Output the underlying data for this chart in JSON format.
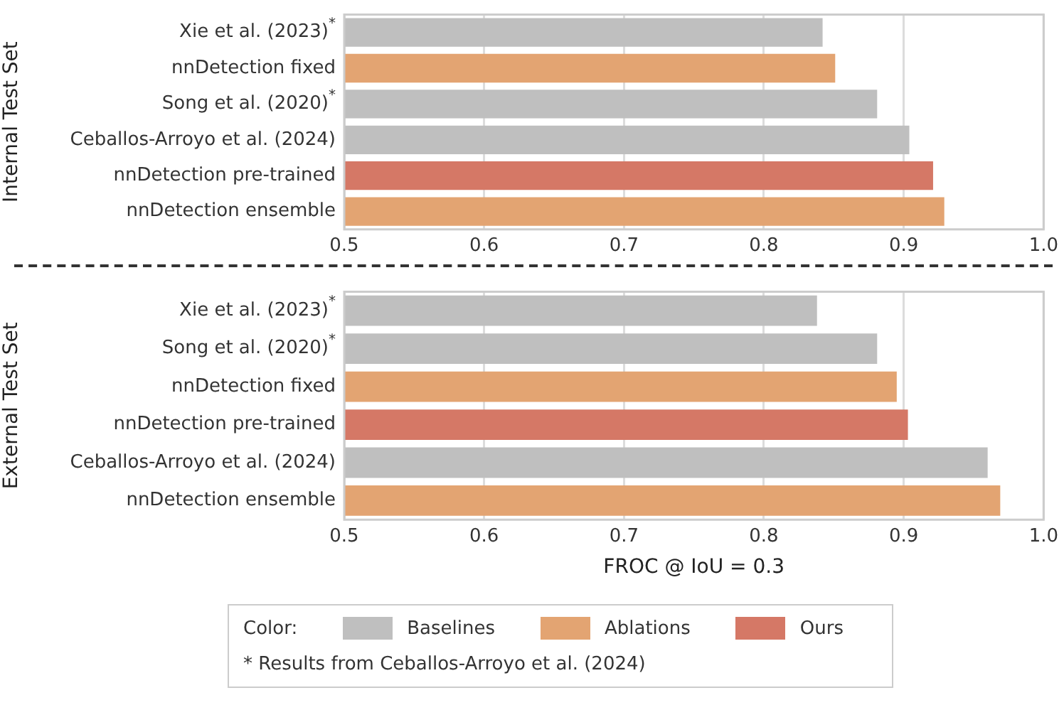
{
  "chart_data": [
    {
      "type": "bar",
      "orientation": "horizontal",
      "stacked": true,
      "ylabel": "Internal Test Set",
      "categories": [
        "Xie et al. (2023)$^{*}$",
        "nnDetection fixed",
        "Song et al. (2020)$^{*}$",
        "Ceballos-Arroyo et al. (2024)",
        "nnDetection pre-trained",
        "nnDetection ensemble"
      ],
      "series": [
        {
          "color": "#bfbfbf",
          "values": [
            0.842,
            null,
            0.881,
            0.904,
            null,
            null
          ]
        },
        {
          "color": "#e3a472",
          "values": [
            null,
            0.851,
            null,
            null,
            null,
            0.929
          ]
        },
        {
          "color": "#d57866",
          "values": [
            null,
            null,
            null,
            null,
            0.921,
            null
          ]
        }
      ],
      "xlim": [
        0.5,
        1.0
      ],
      "xticks": [
        0.5,
        0.6,
        0.7,
        0.8,
        0.9,
        {
          "value": 1.0,
          "label": "1.0"
        }
      ],
      "grid": "x",
      "legend": false
    },
    {
      "type": "bar",
      "orientation": "horizontal",
      "stacked": true,
      "ylabel": "External Test Set",
      "xlabel": "FROC @ IoU = 0.3",
      "categories": [
        "Xie et al. (2023)$^{*}$",
        "Song et al. (2020)$^{*}$",
        "nnDetection fixed",
        "nnDetection pre-trained",
        "Ceballos-Arroyo et al. (2024)",
        "nnDetection ensemble"
      ],
      "series": [
        {
          "name": "Baselines",
          "color": "#bfbfbf",
          "values": [
            0.838,
            0.881,
            null,
            null,
            0.96,
            null
          ]
        },
        {
          "name": "Ablations",
          "color": "#e3a472",
          "values": [
            null,
            null,
            0.895,
            null,
            null,
            0.969
          ]
        },
        {
          "name": "Ours",
          "color": "#d57866",
          "values": [
            null,
            null,
            null,
            0.903,
            null,
            null
          ]
        }
      ],
      "xlim": [
        0.5,
        1.0
      ],
      "xticks": [
        0.5,
        0.6,
        0.7,
        0.8,
        0.9,
        {
          "value": 1.0,
          "label": "1.0"
        }
      ],
      "grid": "x",
      "legend": "bottom",
      "legend_title": "Color:",
      "annotations": [
        "* Results from Ceballos-Arroyo et al. (2024)"
      ]
    }
  ]
}
